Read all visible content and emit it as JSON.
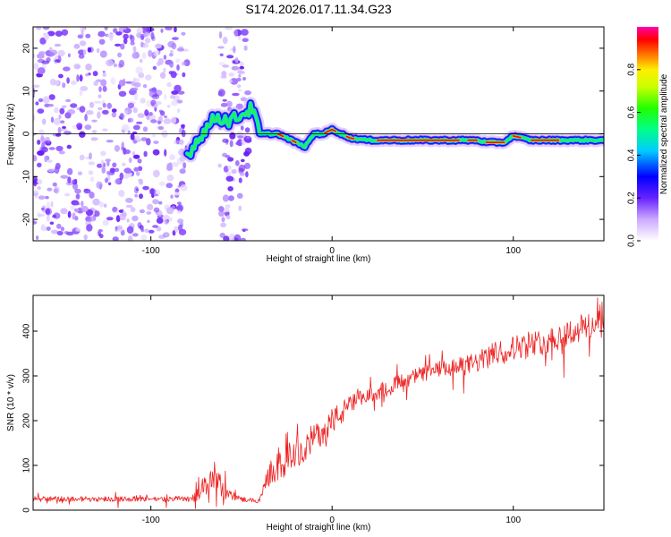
{
  "title": "S174.2026.017.11.34.G23",
  "chart_data": [
    {
      "type": "heatmap",
      "name": "spectrogram",
      "title": "S174.2026.017.11.34.G23",
      "xlabel": "Height of straight line (km)",
      "ylabel": "Frequency (Hz)",
      "xlim": [
        -165,
        150
      ],
      "ylim": [
        -25,
        25
      ],
      "xticks": [
        -100,
        0,
        100
      ],
      "xtick_labels": [
        "-100",
        "0",
        "100"
      ],
      "yticks": [
        20,
        10,
        0,
        -10,
        -20
      ],
      "ytick_labels": [
        "20",
        "10",
        "0",
        "-10",
        "-20"
      ],
      "zero_line_y": 0,
      "noise_regions_km": [
        [
          -165,
          -80
        ],
        [
          -62,
          -46
        ]
      ],
      "signal_ridge": {
        "x_km": [
          -80,
          -72,
          -64,
          -56,
          -48,
          -44,
          -40,
          -35,
          -30,
          -25,
          -20,
          -15,
          -10,
          -5,
          0,
          5,
          10,
          20,
          40,
          60,
          80,
          85,
          90,
          95,
          100,
          105,
          110,
          130,
          150
        ],
        "freq_hz": [
          -5,
          0,
          4,
          3,
          5,
          6,
          0,
          0,
          0,
          -1,
          -2,
          -3,
          0,
          0,
          1,
          0,
          -1,
          -1.5,
          -1.5,
          -1.5,
          -1.5,
          -2,
          -2,
          -2,
          -0.5,
          -1,
          -1.5,
          -1.5,
          -1.5
        ]
      },
      "colorbar": {
        "label": "Normalized spectral amplitude",
        "range": [
          0,
          1
        ],
        "ticks": [
          0.0,
          0.2,
          0.4,
          0.6,
          0.8
        ],
        "tick_labels": [
          "0.0",
          "0.2",
          "0.4",
          "0.6",
          "0.8"
        ]
      }
    },
    {
      "type": "line",
      "name": "snr",
      "xlabel": "Height of straight line (km)",
      "ylabel": "SNR (10 * v/v)",
      "xlim": [
        -165,
        150
      ],
      "ylim": [
        0,
        480
      ],
      "xticks": [
        -100,
        0,
        100
      ],
      "xtick_labels": [
        "-100",
        "0",
        "100"
      ],
      "yticks": [
        0,
        100,
        200,
        300,
        400
      ],
      "ytick_labels": [
        "0",
        "100",
        "200",
        "300",
        "400"
      ],
      "color": "#ee2222",
      "series": [
        {
          "name": "SNR",
          "x": [
            -165,
            -150,
            -130,
            -110,
            -90,
            -80,
            -75,
            -70,
            -65,
            -60,
            -55,
            -50,
            -45,
            -40,
            -35,
            -30,
            -25,
            -20,
            -15,
            -10,
            -5,
            0,
            5,
            10,
            15,
            20,
            25,
            30,
            40,
            50,
            60,
            70,
            80,
            90,
            100,
            110,
            120,
            130,
            140,
            150
          ],
          "y": [
            25,
            25,
            25,
            25,
            25,
            26,
            30,
            55,
            80,
            45,
            30,
            25,
            22,
            20,
            80,
            95,
            110,
            130,
            145,
            160,
            180,
            200,
            215,
            235,
            245,
            255,
            265,
            275,
            290,
            305,
            315,
            320,
            330,
            350,
            365,
            370,
            380,
            395,
            410,
            420
          ]
        }
      ],
      "noise_amplitude": [
        10,
        10,
        10,
        10,
        10,
        12,
        20,
        40,
        50,
        35,
        15,
        10,
        8,
        8,
        45,
        55,
        60,
        60,
        60,
        55,
        55,
        50,
        45,
        40,
        35,
        30,
        30,
        28,
        28,
        30,
        32,
        35,
        40,
        45,
        45,
        45,
        50,
        55,
        55,
        45
      ]
    }
  ]
}
